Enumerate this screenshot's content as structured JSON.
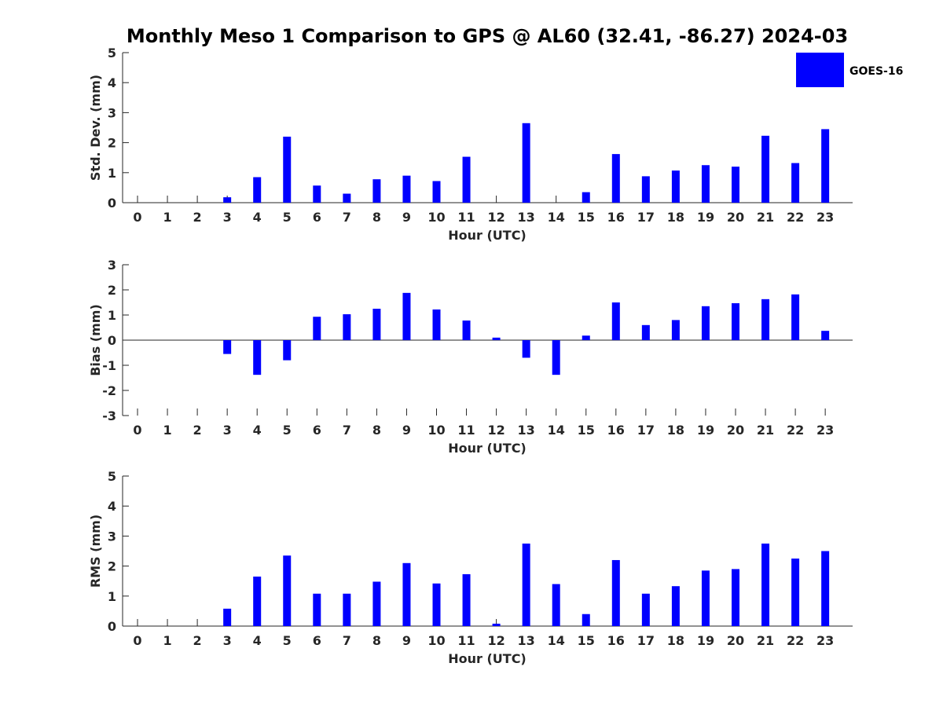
{
  "title": "Monthly Meso 1 Comparison to GPS @ AL60 (32.41, -86.27) 2024-03",
  "legend": {
    "label": "GOES-16",
    "color": "#0000ff",
    "placement": "top-right"
  },
  "chart_data": [
    {
      "type": "bar",
      "ylabel": "Std. Dev. (mm)",
      "xlabel": "Hour (UTC)",
      "ylim": [
        0,
        5
      ],
      "yticks": [
        0,
        1,
        2,
        3,
        4,
        5
      ],
      "categories": [
        "0",
        "1",
        "2",
        "3",
        "4",
        "5",
        "6",
        "7",
        "8",
        "9",
        "10",
        "11",
        "12",
        "13",
        "14",
        "15",
        "16",
        "17",
        "18",
        "19",
        "20",
        "21",
        "22",
        "23"
      ],
      "series": [
        {
          "name": "GOES-16",
          "color": "#0000ff",
          "values": [
            0,
            0,
            0,
            0.18,
            0.85,
            2.2,
            0.57,
            0.3,
            0.78,
            0.9,
            0.72,
            1.53,
            0,
            2.65,
            0,
            0.35,
            1.62,
            0.88,
            1.07,
            1.25,
            1.2,
            2.23,
            1.32,
            2.45
          ]
        }
      ],
      "grid": false
    },
    {
      "type": "bar",
      "ylabel": "Bias (mm)",
      "xlabel": "Hour (UTC)",
      "ylim": [
        -3,
        3
      ],
      "yticks": [
        -3,
        -2,
        -1,
        0,
        1,
        2,
        3
      ],
      "categories": [
        "0",
        "1",
        "2",
        "3",
        "4",
        "5",
        "6",
        "7",
        "8",
        "9",
        "10",
        "11",
        "12",
        "13",
        "14",
        "15",
        "16",
        "17",
        "18",
        "19",
        "20",
        "21",
        "22",
        "23"
      ],
      "series": [
        {
          "name": "GOES-16",
          "color": "#0000ff",
          "values": [
            0,
            0,
            0,
            -0.55,
            -1.38,
            -0.8,
            0.93,
            1.03,
            1.25,
            1.88,
            1.22,
            0.78,
            0.1,
            -0.7,
            -1.38,
            0.18,
            1.5,
            0.6,
            0.8,
            1.35,
            1.47,
            1.63,
            1.82,
            0.37
          ]
        }
      ],
      "grid": false
    },
    {
      "type": "bar",
      "ylabel": "RMS (mm)",
      "xlabel": "Hour (UTC)",
      "ylim": [
        0,
        5
      ],
      "yticks": [
        0,
        1,
        2,
        3,
        4,
        5
      ],
      "categories": [
        "0",
        "1",
        "2",
        "3",
        "4",
        "5",
        "6",
        "7",
        "8",
        "9",
        "10",
        "11",
        "12",
        "13",
        "14",
        "15",
        "16",
        "17",
        "18",
        "19",
        "20",
        "21",
        "22",
        "23"
      ],
      "series": [
        {
          "name": "GOES-16",
          "color": "#0000ff",
          "values": [
            0,
            0,
            0,
            0.58,
            1.65,
            2.35,
            1.08,
            1.08,
            1.48,
            2.1,
            1.42,
            1.73,
            0.08,
            2.75,
            1.4,
            0.4,
            2.2,
            1.08,
            1.33,
            1.85,
            1.9,
            2.75,
            2.25,
            2.5
          ]
        }
      ],
      "grid": false
    }
  ]
}
